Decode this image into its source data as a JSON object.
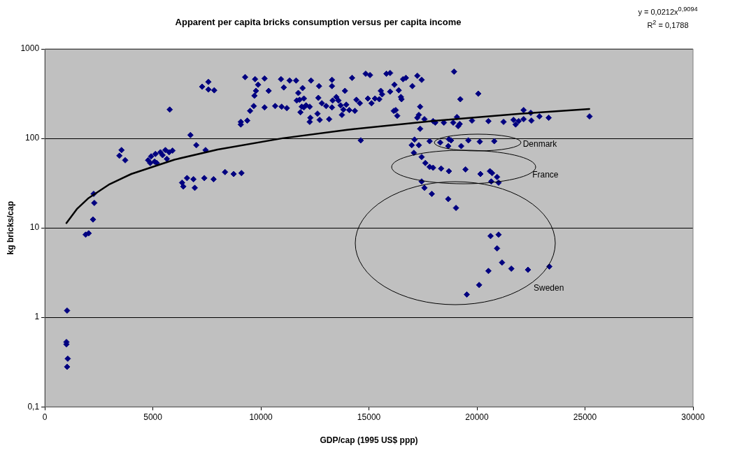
{
  "chart_data": {
    "type": "scatter",
    "title": "Apparent per capita bricks consumption versus per capita income",
    "xlabel": "GDP/cap (1995 US$ ppp)",
    "ylabel": "kg bricks/cap",
    "xlim": [
      0,
      30000
    ],
    "xticks": [
      0,
      5000,
      10000,
      15000,
      20000,
      25000,
      30000
    ],
    "ylim": [
      0.1,
      1000
    ],
    "yticks": [
      {
        "value": 0.1,
        "label": "0,1"
      },
      1,
      10,
      100,
      1000
    ],
    "log": "y",
    "grid": "y",
    "legend": false,
    "marker": "diamond",
    "series": [
      {
        "color": "#000080",
        "x": [
          9270,
          9730,
          9870,
          9770,
          9700,
          9670,
          9500,
          9370,
          9070,
          9070,
          7570,
          7280,
          7570,
          7840,
          5780,
          6740,
          7010,
          7440,
          3550,
          3450,
          3720,
          4780,
          4920,
          4880,
          5120,
          5180,
          5350,
          5450,
          5580,
          5650,
          5750,
          5910,
          5080,
          8340,
          8740,
          9100,
          7380,
          7810,
          6580,
          6880,
          6350,
          6410,
          6940,
          2260,
          2290,
          2230,
          2030,
          1890,
          1030,
          1000,
          1000,
          1060,
          1030,
          10170,
          10360,
          10170,
          10660,
          10960,
          11200,
          10930,
          11060,
          11330,
          11630,
          12320,
          12690,
          13290,
          13290,
          14220,
          14850,
          15050,
          15810,
          15980,
          16580,
          16710,
          17240,
          17440,
          17010,
          16180,
          16380,
          15980,
          15550,
          15610,
          15280,
          15480,
          14950,
          15120,
          14580,
          14420,
          13890,
          13950,
          14090,
          14350,
          13820,
          13690,
          13750,
          13490,
          13590,
          13320,
          13290,
          13160,
          13020,
          12820,
          12660,
          12620,
          12720,
          12290,
          12260,
          12260,
          12090,
          11990,
          11830,
          11890,
          11660,
          11790,
          11730,
          11930,
          11990,
          16480,
          16510,
          16150,
          16240,
          16310,
          17370,
          17310,
          17240,
          17570,
          17370,
          18940,
          19230,
          19070,
          19130,
          14620,
          17110,
          16980,
          17310,
          17080,
          17970,
          20060,
          18070,
          18470,
          18900,
          19200,
          19770,
          20530,
          21230,
          21690,
          21790,
          21930,
          22160,
          22490,
          22160,
          22520,
          22890,
          23320,
          25210,
          17810,
          18300,
          18700,
          18800,
          18670,
          19270,
          19600,
          20130,
          20800,
          17440,
          17610,
          17810,
          17970,
          18340,
          18700,
          19470,
          20160,
          20600,
          20700,
          20930,
          20660,
          21000,
          17440,
          17570,
          17910,
          18670,
          19030,
          20630,
          21000,
          20930,
          21160,
          20530,
          21590,
          22360,
          23350,
          20100,
          19530
        ],
        "values": [
          484,
          459,
          398,
          340,
          300,
          230,
          203,
          158,
          153,
          143,
          428,
          378,
          352,
          345,
          210,
          109,
          84,
          74,
          74,
          64,
          57,
          57,
          63,
          53,
          67,
          53,
          70,
          65,
          74,
          59,
          70,
          73,
          55,
          42,
          40,
          41,
          36,
          35,
          36,
          35,
          32,
          29,
          28,
          24,
          19,
          12.4,
          8.7,
          8.4,
          1.19,
          0.53,
          0.5,
          0.345,
          0.28,
          467,
          340,
          222,
          230,
          226,
          218,
          459,
          371,
          443,
          443,
          443,
          384,
          451,
          384,
          475,
          528,
          510,
          528,
          538,
          459,
          475,
          501,
          451,
          384,
          398,
          345,
          333,
          340,
          311,
          279,
          274,
          279,
          247,
          247,
          270,
          340,
          238,
          207,
          203,
          210,
          234,
          183,
          290,
          265,
          265,
          222,
          164,
          230,
          247,
          284,
          189,
          161,
          170,
          153,
          226,
          234,
          222,
          196,
          226,
          265,
          270,
          322,
          365,
          279,
          290,
          274,
          203,
          207,
          179,
          226,
          183,
          170,
          164,
          128,
          557,
          274,
          173,
          137,
          95,
          97,
          84,
          84,
          69,
          156,
          316,
          150,
          150,
          150,
          145,
          158,
          156,
          153,
          161,
          143,
          156,
          207,
          193,
          164,
          158,
          176,
          170,
          176,
          93,
          90,
          98,
          95,
          82,
          82,
          95,
          92,
          93,
          62,
          53,
          48,
          47,
          46,
          43,
          45,
          40,
          43,
          41,
          37,
          33,
          32,
          33,
          28,
          24,
          21,
          16.7,
          8.1,
          8.4,
          5.9,
          4.1,
          3.3,
          3.5,
          3.4,
          3.7,
          2.3,
          1.8
        ]
      },
      {
        "type": "line",
        "color": "#000000",
        "marker": "none",
        "x": [
          1000,
          1500,
          2000,
          3000,
          4000,
          6000,
          8000,
          11000,
          14000,
          18000,
          22000,
          25200
        ],
        "values": [
          11.3,
          16.4,
          21.3,
          30.8,
          40,
          57.9,
          75.1,
          100.3,
          124.9,
          157,
          188.5,
          213
        ]
      }
    ],
    "annotations": [
      "y = 0,0212x$^{0,9094}$",
      "R$^{2}$ = 0,1788",
      "Denmark",
      "France",
      "Sweden"
    ]
  }
}
